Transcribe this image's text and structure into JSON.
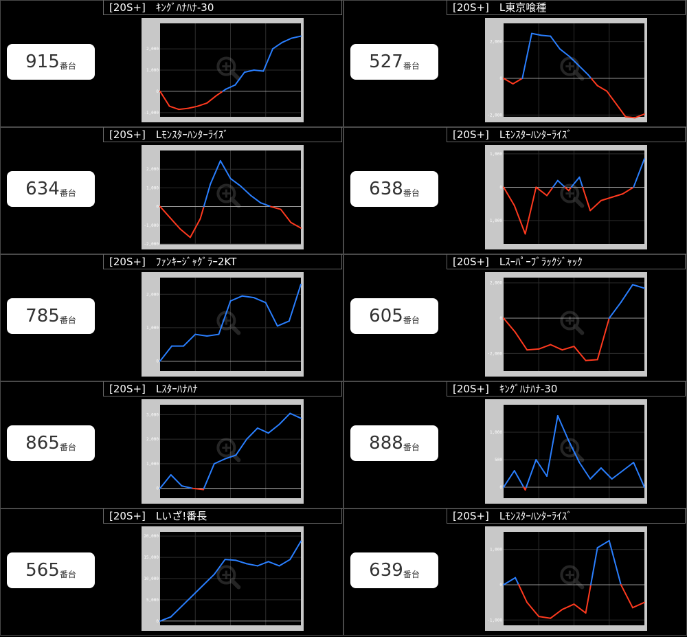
{
  "colors": {
    "positive": "#2a7fff",
    "negative": "#ff3a1f",
    "plot_bg": "#000000",
    "frame": "#c8c8c8",
    "grid": "#2e2e2e",
    "zero_line": "#c8c8c8"
  },
  "machine_suffix": "番台",
  "chart_data": [
    {
      "type": "line",
      "machine": "915",
      "title": "[20S+]　ｷﾝｸﾞﾊﾅﾊﾅ-30",
      "yticks": [
        2000,
        1000,
        0,
        -1000
      ],
      "ytick_labels": [
        "2,000",
        "1,000",
        "0",
        "-1,000"
      ],
      "ylim": [
        -1200,
        3200
      ],
      "values": [
        0,
        -700,
        -850,
        -800,
        -700,
        -550,
        -200,
        100,
        300,
        900,
        1000,
        950,
        2000,
        2300,
        2500,
        2600
      ]
    },
    {
      "type": "line",
      "machine": "527",
      "title": "[20S+]　L東京喰種",
      "yticks": [
        2000,
        0,
        -2000
      ],
      "ytick_labels": [
        "2,000",
        "0",
        "-2,000"
      ],
      "ylim": [
        -2100,
        3000
      ],
      "values": [
        0,
        -300,
        0,
        2450,
        2350,
        2300,
        1600,
        1200,
        700,
        200,
        -400,
        -700,
        -1400,
        -2100,
        -2150,
        -1950
      ]
    },
    {
      "type": "line",
      "machine": "634",
      "title": "[20S+]　Lﾓﾝｽﾀｰﾊﾝﾀｰﾗｲｽﾞ",
      "yticks": [
        2000,
        1000,
        0,
        -1000,
        -2000
      ],
      "ytick_labels": [
        "2,000",
        "1,000",
        "0",
        "-1,000",
        "-2,000"
      ],
      "ylim": [
        -2000,
        3000
      ],
      "values": [
        0,
        -600,
        -1200,
        -1650,
        -650,
        1200,
        2450,
        1500,
        1100,
        600,
        200,
        0,
        -150,
        -850,
        -1150
      ]
    },
    {
      "type": "line",
      "machine": "638",
      "title": "[20S+]　Lﾓﾝｽﾀｰﾊﾝﾀｰﾗｲｽﾞ",
      "yticks": [
        1000,
        0,
        -1000
      ],
      "ytick_labels": [
        "1,000",
        "0",
        "-1,000"
      ],
      "ylim": [
        -1700,
        1100
      ],
      "values": [
        0,
        -550,
        -1400,
        0,
        -250,
        200,
        -100,
        300,
        -700,
        -400,
        -300,
        -200,
        0,
        850
      ]
    },
    {
      "type": "line",
      "machine": "785",
      "title": "[20S+]　ﾌｧﾝｷｰｼﾞｬｸﾞﾗｰ2KT",
      "yticks": [
        2000,
        1000,
        0
      ],
      "ytick_labels": [
        "2,000",
        "1,000",
        "0"
      ],
      "ylim": [
        -300,
        2500
      ],
      "values": [
        0,
        450,
        450,
        800,
        750,
        800,
        1800,
        1950,
        1900,
        1750,
        1050,
        1200,
        2300
      ]
    },
    {
      "type": "line",
      "machine": "605",
      "title": "[20S+]　Lｽｰﾊﾟｰﾌﾞﾗｯｸｼﾞｬｯｸ",
      "yticks": [
        2000,
        0,
        -2000
      ],
      "ytick_labels": [
        "2,000",
        "0",
        "-2,000"
      ],
      "ylim": [
        -3000,
        2300
      ],
      "values": [
        0,
        -800,
        -1800,
        -1750,
        -1500,
        -1800,
        -1600,
        -2400,
        -2350,
        0,
        900,
        1900,
        1700
      ]
    },
    {
      "type": "line",
      "machine": "865",
      "title": "[20S+]　Lｽﾀｰﾊﾅﾊﾅ",
      "yticks": [
        3000,
        2000,
        1000,
        0
      ],
      "ytick_labels": [
        "3,000",
        "2,000",
        "1,000",
        "0"
      ],
      "ylim": [
        -400,
        3400
      ],
      "values": [
        0,
        550,
        100,
        0,
        -50,
        1000,
        1200,
        1350,
        2000,
        2450,
        2250,
        2600,
        3050,
        2850
      ]
    },
    {
      "type": "line",
      "machine": "888",
      "title": "[20S+]　ｷﾝｸﾞﾊﾅﾊﾅ-30",
      "yticks": [
        1000,
        500,
        0
      ],
      "ytick_labels": [
        "1,000",
        "500",
        "0"
      ],
      "ylim": [
        -200,
        1500
      ],
      "values": [
        0,
        300,
        -50,
        500,
        200,
        1300,
        850,
        450,
        150,
        350,
        150,
        300,
        450,
        0
      ]
    },
    {
      "type": "line",
      "machine": "565",
      "title": "[20S+]　Lいざ!番長",
      "yticks": [
        20000,
        15000,
        10000,
        5000,
        0
      ],
      "ytick_labels": [
        "20,000",
        "15,000",
        "10,000",
        "5,000",
        "0"
      ],
      "ylim": [
        -1000,
        21000
      ],
      "values": [
        0,
        1000,
        3500,
        6000,
        8500,
        11000,
        14500,
        14300,
        13500,
        13000,
        14000,
        13000,
        14500,
        18800
      ]
    },
    {
      "type": "line",
      "machine": "639",
      "title": "[20S+]　Lﾓﾝｽﾀｰﾊﾝﾀｰﾗｲｽﾞ",
      "yticks": [
        1000,
        0,
        -1000
      ],
      "ytick_labels": [
        "1,000",
        "0",
        "-1,000"
      ],
      "ylim": [
        -1150,
        1500
      ],
      "values": [
        0,
        200,
        -500,
        -900,
        -950,
        -700,
        -550,
        -800,
        1050,
        1250,
        0,
        -650,
        -500
      ]
    }
  ]
}
